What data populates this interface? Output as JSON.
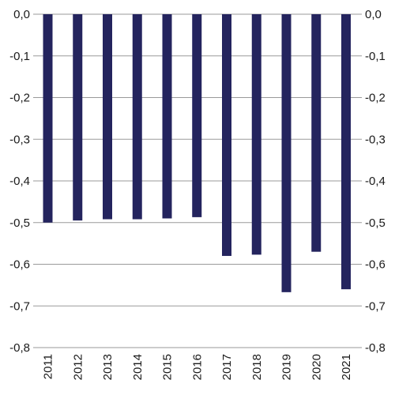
{
  "chart_data": {
    "type": "bar",
    "categories": [
      "2011",
      "2012",
      "2013",
      "2014",
      "2015",
      "2016",
      "2017",
      "2018",
      "2019",
      "2020",
      "2021"
    ],
    "values": [
      -0.5,
      -0.495,
      -0.492,
      -0.492,
      -0.49,
      -0.487,
      -0.58,
      -0.577,
      -0.667,
      -0.57,
      -0.66
    ],
    "ylim": [
      -0.8,
      0.0
    ],
    "yticks": [
      0.0,
      -0.1,
      -0.2,
      -0.3,
      -0.4,
      -0.5,
      -0.6,
      -0.7,
      -0.8
    ],
    "ytick_labels": [
      "0,0",
      "-0,1",
      "-0,2",
      "-0,3",
      "-0,4",
      "-0,5",
      "-0,6",
      "-0,7",
      "-0,8"
    ],
    "grid": true,
    "bar_color": "#24245e",
    "title": "",
    "xlabel": "",
    "ylabel": ""
  }
}
